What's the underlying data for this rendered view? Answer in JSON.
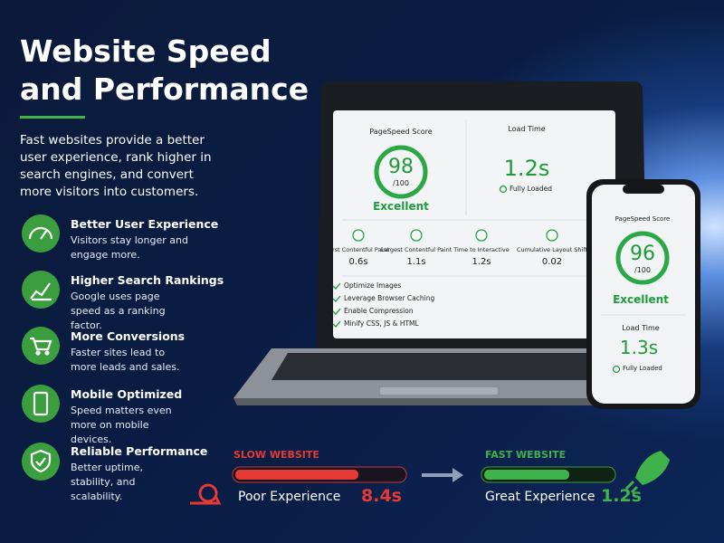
{
  "header": {
    "title_line1": "Website Speed",
    "title_line2": "and Performance",
    "intro": "Fast websites provide a better user experience, rank higher in search engines, and convert more visitors into customers."
  },
  "features": [
    {
      "title": "Better User Experience",
      "text": "Visitors stay longer and engage more."
    },
    {
      "title": "Higher Search Rankings",
      "text": "Google uses page speed as a ranking factor."
    },
    {
      "title": "More Conversions",
      "text": "Faster sites lead to more leads and sales."
    },
    {
      "title": "Mobile Optimized",
      "text": "Speed matters even more on mobile devices."
    },
    {
      "title": "Reliable Performance",
      "text": "Better uptime, stability, and scalability."
    }
  ],
  "laptop": {
    "pagespeed": {
      "label": "PageSpeed Score",
      "score": 98,
      "max": "/100",
      "rating": "Excellent"
    },
    "load_time": {
      "label": "Load Time",
      "value": "1.2s",
      "status": "Fully Loaded"
    },
    "metrics": [
      {
        "label": "First Contentful Paint",
        "value": "0.6s"
      },
      {
        "label": "Largest Contentful Paint",
        "value": "1.1s"
      },
      {
        "label": "Time to Interactive",
        "value": "1.2s"
      },
      {
        "label": "Cumulative Layout Shift",
        "value": "0.02"
      }
    ],
    "checklist": [
      "Optimize Images",
      "Leverage Browser Caching",
      "Enable Compression",
      "Minify CSS, JS & HTML"
    ]
  },
  "phone": {
    "pagespeed": {
      "label": "PageSpeed Score",
      "score": 96,
      "max": "/100",
      "rating": "Excellent"
    },
    "load_time": {
      "label": "Load Time",
      "value": "1.3s",
      "status": "Fully Loaded"
    }
  },
  "comparison": {
    "slow": {
      "label": "SLOW WEBSITE",
      "text": "Poor Experience",
      "value": "8.4s"
    },
    "fast": {
      "label": "FAST WEBSITE",
      "text": "Great Experience",
      "value": "1.2s"
    }
  }
}
